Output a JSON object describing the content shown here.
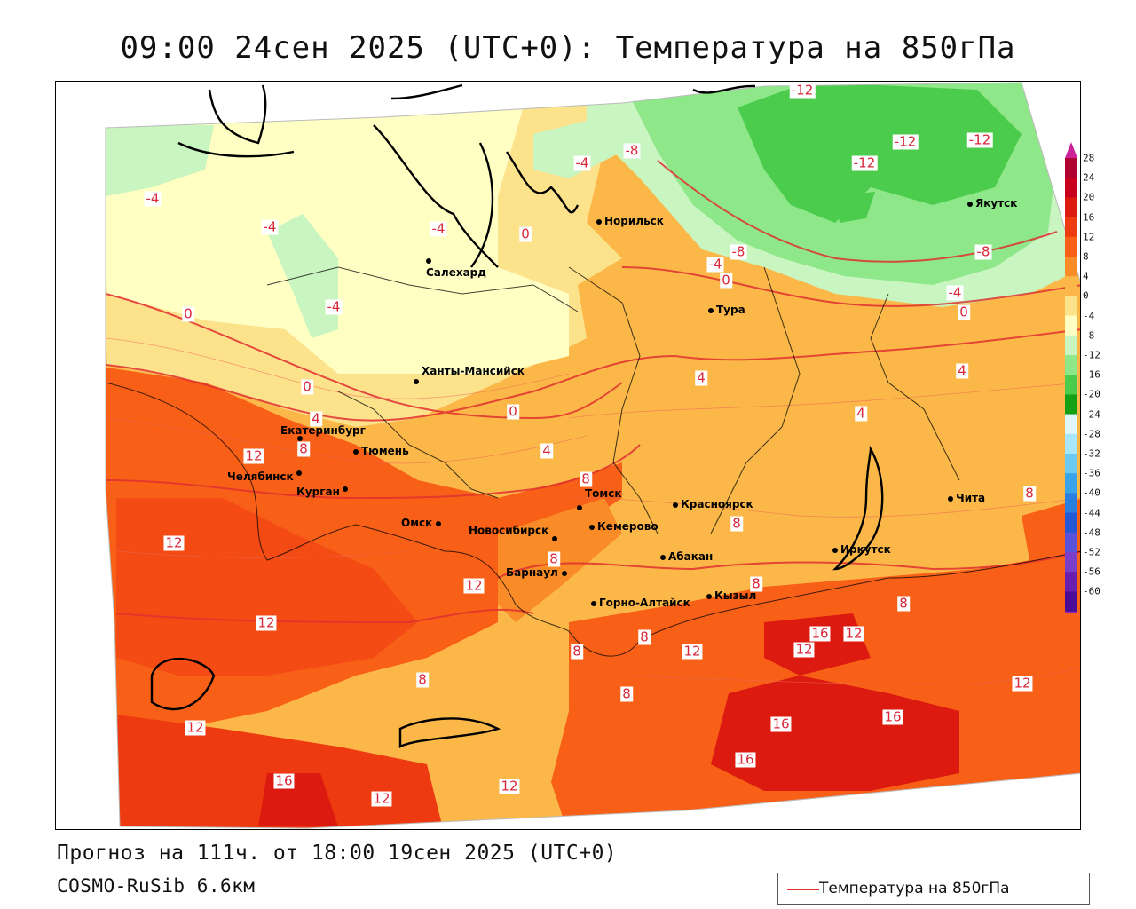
{
  "title": "09:00 24сен 2025 (UTC+0): Температура на 850гПа",
  "forecast_line": "Прогноз на 111ч. от 18:00 19сен 2025 (UTC+0)",
  "model_line": "COSMO-RuSib 6.6км",
  "legend": {
    "label": "Температура на 850гПа",
    "line_color": "#e03030"
  },
  "colorbar": {
    "ticks": [
      "28",
      "24",
      "20",
      "16",
      "12",
      "8",
      "4",
      "0",
      "-4",
      "-8",
      "-12",
      "-16",
      "-20",
      "-24",
      "-28",
      "-32",
      "-36",
      "-40",
      "-44",
      "-48",
      "-52",
      "-56",
      "-60"
    ],
    "colors": [
      "#b00030",
      "#c8001e",
      "#dc1a10",
      "#ee3a10",
      "#f86018",
      "#fa8c28",
      "#fbb848",
      "#fde28c",
      "#ffffc4",
      "#c8f5c0",
      "#8ee88a",
      "#4ccc4c",
      "#14a014",
      "#dff6ff",
      "#a8e6fa",
      "#6ccaf2",
      "#3aa4ea",
      "#2a7ee0",
      "#2458d6",
      "#5a52d8",
      "#7a3ec8",
      "#6a1eae",
      "#4a0c96"
    ],
    "top_arrow_color": "#cc2299",
    "bottom_arrow_color": "#8822bb"
  },
  "cities": [
    {
      "name": "Норильск"
    },
    {
      "name": "Якутск"
    },
    {
      "name": "Салехард"
    },
    {
      "name": "Тура"
    },
    {
      "name": "Ханты-Мансийск"
    },
    {
      "name": "Екатеринбург"
    },
    {
      "name": "Тюмень"
    },
    {
      "name": "Челябинск"
    },
    {
      "name": "Курган"
    },
    {
      "name": "Омск"
    },
    {
      "name": "Новосибирск"
    },
    {
      "name": "Томск"
    },
    {
      "name": "Кемерово"
    },
    {
      "name": "Красноярск"
    },
    {
      "name": "Абакан"
    },
    {
      "name": "Барнаул"
    },
    {
      "name": "Горно-Алтайск"
    },
    {
      "name": "Кызыл"
    },
    {
      "name": "Иркутск"
    },
    {
      "name": "Чита"
    }
  ],
  "isotherm_labels": [
    "-12",
    "-12",
    "-12",
    "-12",
    "-8",
    "-8",
    "-8",
    "-4",
    "-4",
    "-4",
    "-4",
    "-4",
    "-4",
    "-4",
    "0",
    "0",
    "0",
    "0",
    "0",
    "0",
    "4",
    "4",
    "4",
    "4",
    "4",
    "8",
    "8",
    "8",
    "8",
    "8",
    "8",
    "8",
    "8",
    "8",
    "8",
    "8",
    "12",
    "12",
    "12",
    "12",
    "12",
    "12",
    "12",
    "12",
    "12",
    "12",
    "12",
    "16",
    "16",
    "16",
    "16",
    "16"
  ]
}
